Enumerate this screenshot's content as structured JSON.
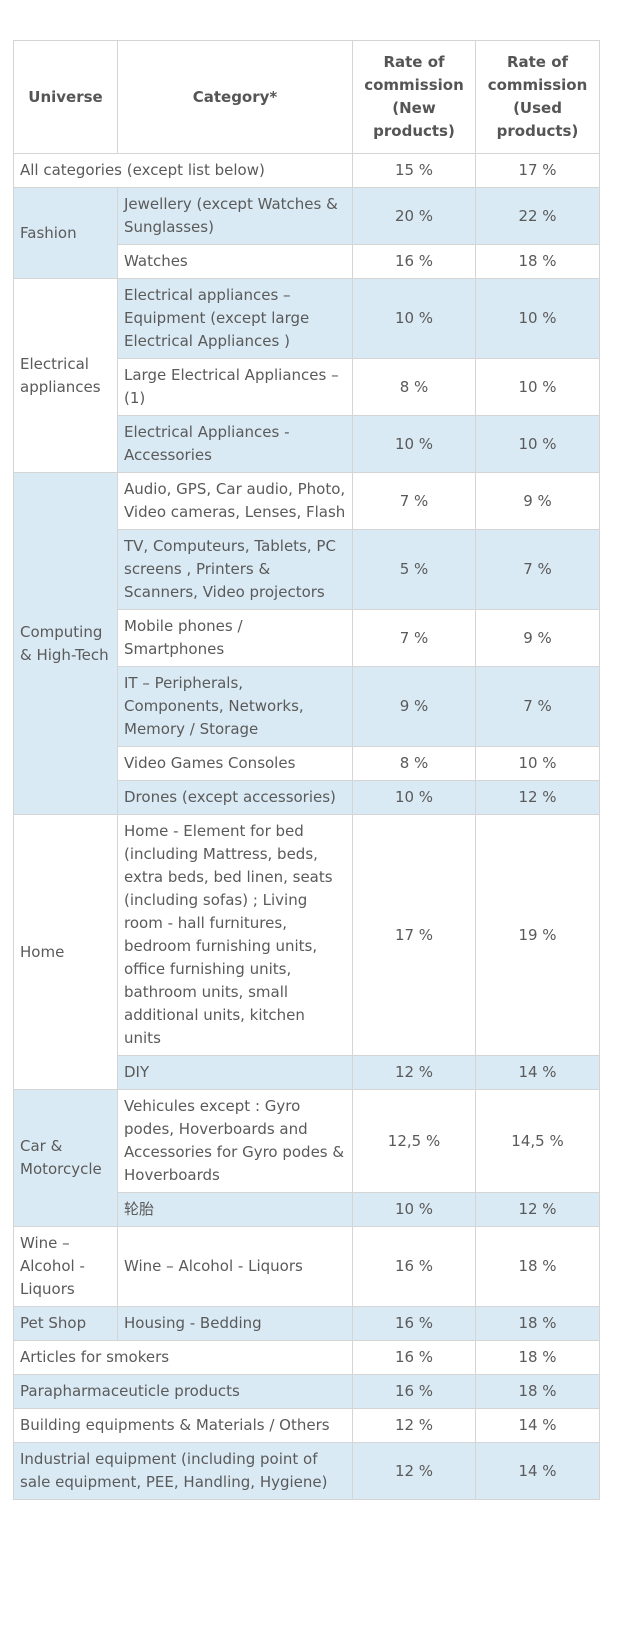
{
  "headers": {
    "universe": "Universe",
    "category": "Category*",
    "rate_new": "Rate of commission (New products)",
    "rate_used": "Rate of commission (Used products)"
  },
  "rows": {
    "all": {
      "category": "All categories (except list below)",
      "new": "15 %",
      "used": "17 %"
    },
    "fashion": {
      "universe": "Fashion",
      "r0": {
        "category": "Jewellery (except Watches & Sunglasses)",
        "new": "20 %",
        "used": "22 %"
      },
      "r1": {
        "category": "Watches",
        "new": "16 %",
        "used": "18 %"
      }
    },
    "electrical": {
      "universe": "Electrical appliances",
      "r0": {
        "category": "Electrical appliances – Equipment (except large Electrical Appliances )",
        "new": "10 %",
        "used": "10 %"
      },
      "r1": {
        "category": "Large Electrical Appliances – (1)",
        "new": "8 %",
        "used": "10 %"
      },
      "r2": {
        "category": "Electrical Appliances - Accessories",
        "new": "10 %",
        "used": "10 %"
      }
    },
    "computing": {
      "universe": "Computing & High-Tech",
      "r0": {
        "category": "Audio, GPS, Car audio, Photo, Video cameras, Lenses, Flash",
        "new": "7 %",
        "used": "9 %"
      },
      "r1": {
        "category": "TV, Computeurs, Tablets, PC screens , Printers & Scanners, Video projectors",
        "new": "5 %",
        "used": "7 %"
      },
      "r2": {
        "category": "Mobile phones / Smartphones",
        "new": "7 %",
        "used": "9 %"
      },
      "r3": {
        "category": "IT – Peripherals, Components, Networks, Memory / Storage",
        "new": "9 %",
        "used": "7 %"
      },
      "r4": {
        "category": "Video Games Consoles",
        "new": "8 %",
        "used": "10 %"
      },
      "r5": {
        "category": "Drones (except accessories)",
        "new": "10 %",
        "used": "12 %"
      }
    },
    "home": {
      "universe": "Home",
      "r0": {
        "category": "Home - Element for bed (including Mattress, beds, extra beds, bed linen, seats (including sofas) ; Living room - hall furnitures, bedroom furnishing units, office furnishing units, bathroom units, small additional units, kitchen units",
        "new": "17 %",
        "used": "19 %"
      },
      "r1": {
        "category": "DIY",
        "new": "12 %",
        "used": "14 %"
      }
    },
    "car": {
      "universe": "Car & Motorcycle",
      "r0": {
        "category": "Vehicules except : Gyro podes, Hoverboards and Accessories for Gyro podes & Hoverboards",
        "new": "12,5 %",
        "used": "14,5 %"
      },
      "r1": {
        "category": "轮胎",
        "new": "10 %",
        "used": "12 %"
      }
    },
    "wine": {
      "universe": "Wine – Alcohol - Liquors",
      "category": "Wine – Alcohol - Liquors",
      "new": "16 %",
      "used": "18 %"
    },
    "pet": {
      "universe": "Pet Shop",
      "category": "Housing - Bedding",
      "new": "16 %",
      "used": "18 %"
    },
    "smokers": {
      "category": "Articles for smokers",
      "new": "16 %",
      "used": "18 %"
    },
    "parapharma": {
      "category": "Parapharmaceuticle products",
      "new": "16 %",
      "used": "18 %"
    },
    "building": {
      "category": "Building equipments & Materials / Others",
      "new": "12 %",
      "used": "14 %"
    },
    "industrial": {
      "category": "Industrial equipment (including point of sale equipment, PEE, Handling, Hygiene)",
      "new": "12 %",
      "used": "14 %"
    }
  },
  "colors": {
    "row_blue": "#daeaf4",
    "row_white": "#ffffff",
    "border": "#d5d5d5",
    "text": "#5a5a5a"
  }
}
